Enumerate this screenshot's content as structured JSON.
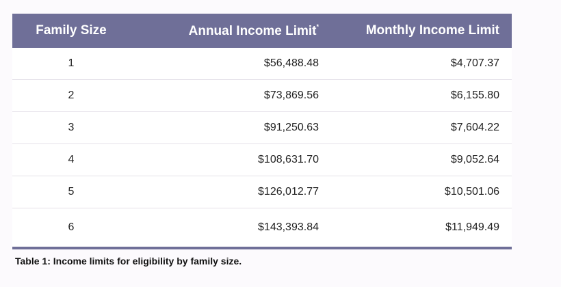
{
  "table": {
    "header": [
      "Family Size",
      "Annual Income Limit",
      "Monthly Income Limit"
    ],
    "header_note_mark": "*",
    "rows": [
      [
        "1",
        "$56,488.48",
        "$4,707.37"
      ],
      [
        "2",
        "$73,869.56",
        "$6,155.80"
      ],
      [
        "3",
        "$91,250.63",
        "$7,604.22"
      ],
      [
        "4",
        "$108,631.70",
        "$9,052.64"
      ],
      [
        "5",
        "$126,012.77",
        "$10,501.06"
      ],
      [
        "6",
        "$143,393.84",
        "$11,949.49"
      ]
    ],
    "caption": "Table 1: Income limits for eligibility by family size."
  }
}
